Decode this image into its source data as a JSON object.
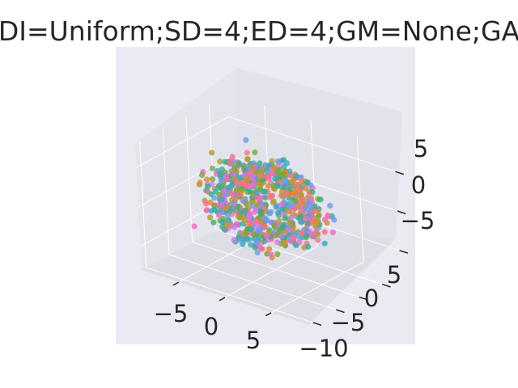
{
  "chart_data": {
    "type": "scatter",
    "projection": "3d",
    "title": "DI=Uniform;SD=4;ED=4;GM=None;GA",
    "xlabel": "",
    "ylabel": "",
    "zlabel": "",
    "x_ticks": [
      "−5",
      "0",
      "5"
    ],
    "y_ticks": [
      "−10",
      "−5",
      "0",
      "5"
    ],
    "z_ticks": [
      "−5",
      "0",
      "5"
    ],
    "xlim": [
      -9,
      9
    ],
    "ylim": [
      -11,
      9
    ],
    "zlim": [
      -8,
      8
    ],
    "grid": true,
    "legend": "none",
    "point_count": 800,
    "colors": [
      "#f77189",
      "#dc8932",
      "#ae9d31",
      "#77ab31",
      "#33b07a",
      "#36ada4",
      "#38a9c5",
      "#6e9bf4",
      "#cc7af4",
      "#f565cc"
    ],
    "style": {
      "pane_color": "#eaeaf2",
      "background": "#ffffff",
      "text_color": "#262626",
      "marker_alpha": 0.8
    }
  }
}
